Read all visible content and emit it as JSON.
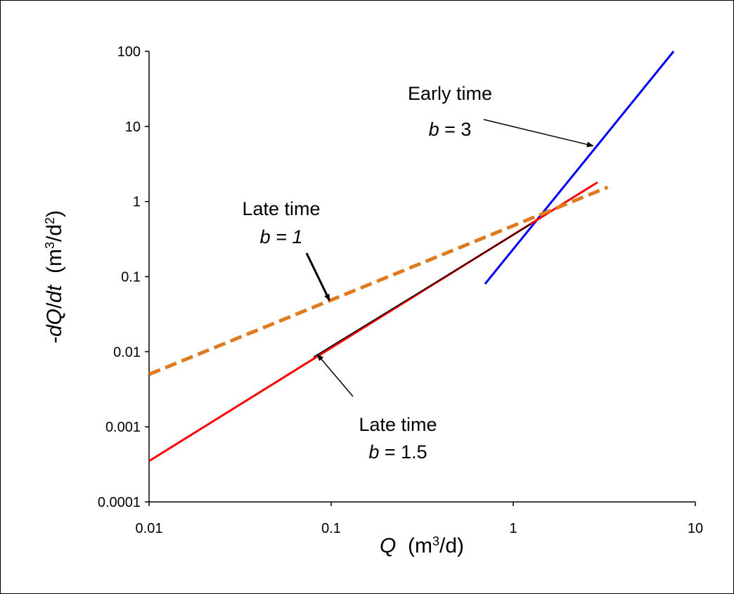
{
  "chart_data": {
    "type": "line",
    "x_scale": "log",
    "y_scale": "log",
    "xlim": [
      0.01,
      10
    ],
    "ylim": [
      0.0001,
      100
    ],
    "x_ticks": [
      {
        "value": 0.01,
        "label": "0.01"
      },
      {
        "value": 0.1,
        "label": "0.1"
      },
      {
        "value": 1,
        "label": "1"
      },
      {
        "value": 10,
        "label": "10"
      }
    ],
    "y_ticks": [
      {
        "value": 0.0001,
        "label": "0.0001"
      },
      {
        "value": 0.001,
        "label": "0.001"
      },
      {
        "value": 0.01,
        "label": "0.01"
      },
      {
        "value": 0.1,
        "label": "0.1"
      },
      {
        "value": 1,
        "label": "1"
      },
      {
        "value": 10,
        "label": "10"
      },
      {
        "value": 100,
        "label": "100"
      }
    ],
    "xlabel": {
      "italic": "Q",
      "rest": "  (m",
      "sup": "3",
      "tail": "/d)"
    },
    "ylabel": {
      "italic1": "-dQ",
      "mid": "/",
      "italic2": "dt",
      "rest": "  (m",
      "sup1": "3",
      "mid2": "/d",
      "sup2": "2",
      "tail": ")"
    },
    "grid": false,
    "legend": "none",
    "series": [
      {
        "id": "early",
        "color": "#0000ff",
        "style": "solid",
        "x": [
          0.7,
          7.6
        ],
        "y": [
          0.08,
          100
        ]
      },
      {
        "id": "late-1.5",
        "color": "#ff0000",
        "style": "solid",
        "x": [
          0.01,
          2.9
        ],
        "y": [
          0.00035,
          1.8
        ]
      },
      {
        "id": "late-1",
        "color": "#e07a1f",
        "style": "dashed",
        "x": [
          0.01,
          3.3
        ],
        "y": [
          0.005,
          1.55
        ]
      },
      {
        "id": "overlap",
        "color": "#000000",
        "style": "solid",
        "x": [
          0.08,
          1.25
        ],
        "y": [
          0.0085,
          0.5
        ]
      }
    ],
    "annotations": [
      {
        "id": "early",
        "line1": "Early time",
        "b_label": "b",
        "b_value": "= 3",
        "b_italic_value": false,
        "arrow_to": {
          "x": 2.75,
          "y": 5.5
        }
      },
      {
        "id": "late-1",
        "line1": "Late time",
        "b_label": "b",
        "b_value": "= 1",
        "b_italic_value": true,
        "arrow_to": {
          "x": 0.098,
          "y": 0.048
        }
      },
      {
        "id": "late-1.5",
        "line1": "Late time",
        "b_label": "b",
        "b_value": "= 1.5",
        "b_italic_value": false,
        "arrow_to": {
          "x": 0.084,
          "y": 0.0092
        }
      }
    ]
  }
}
